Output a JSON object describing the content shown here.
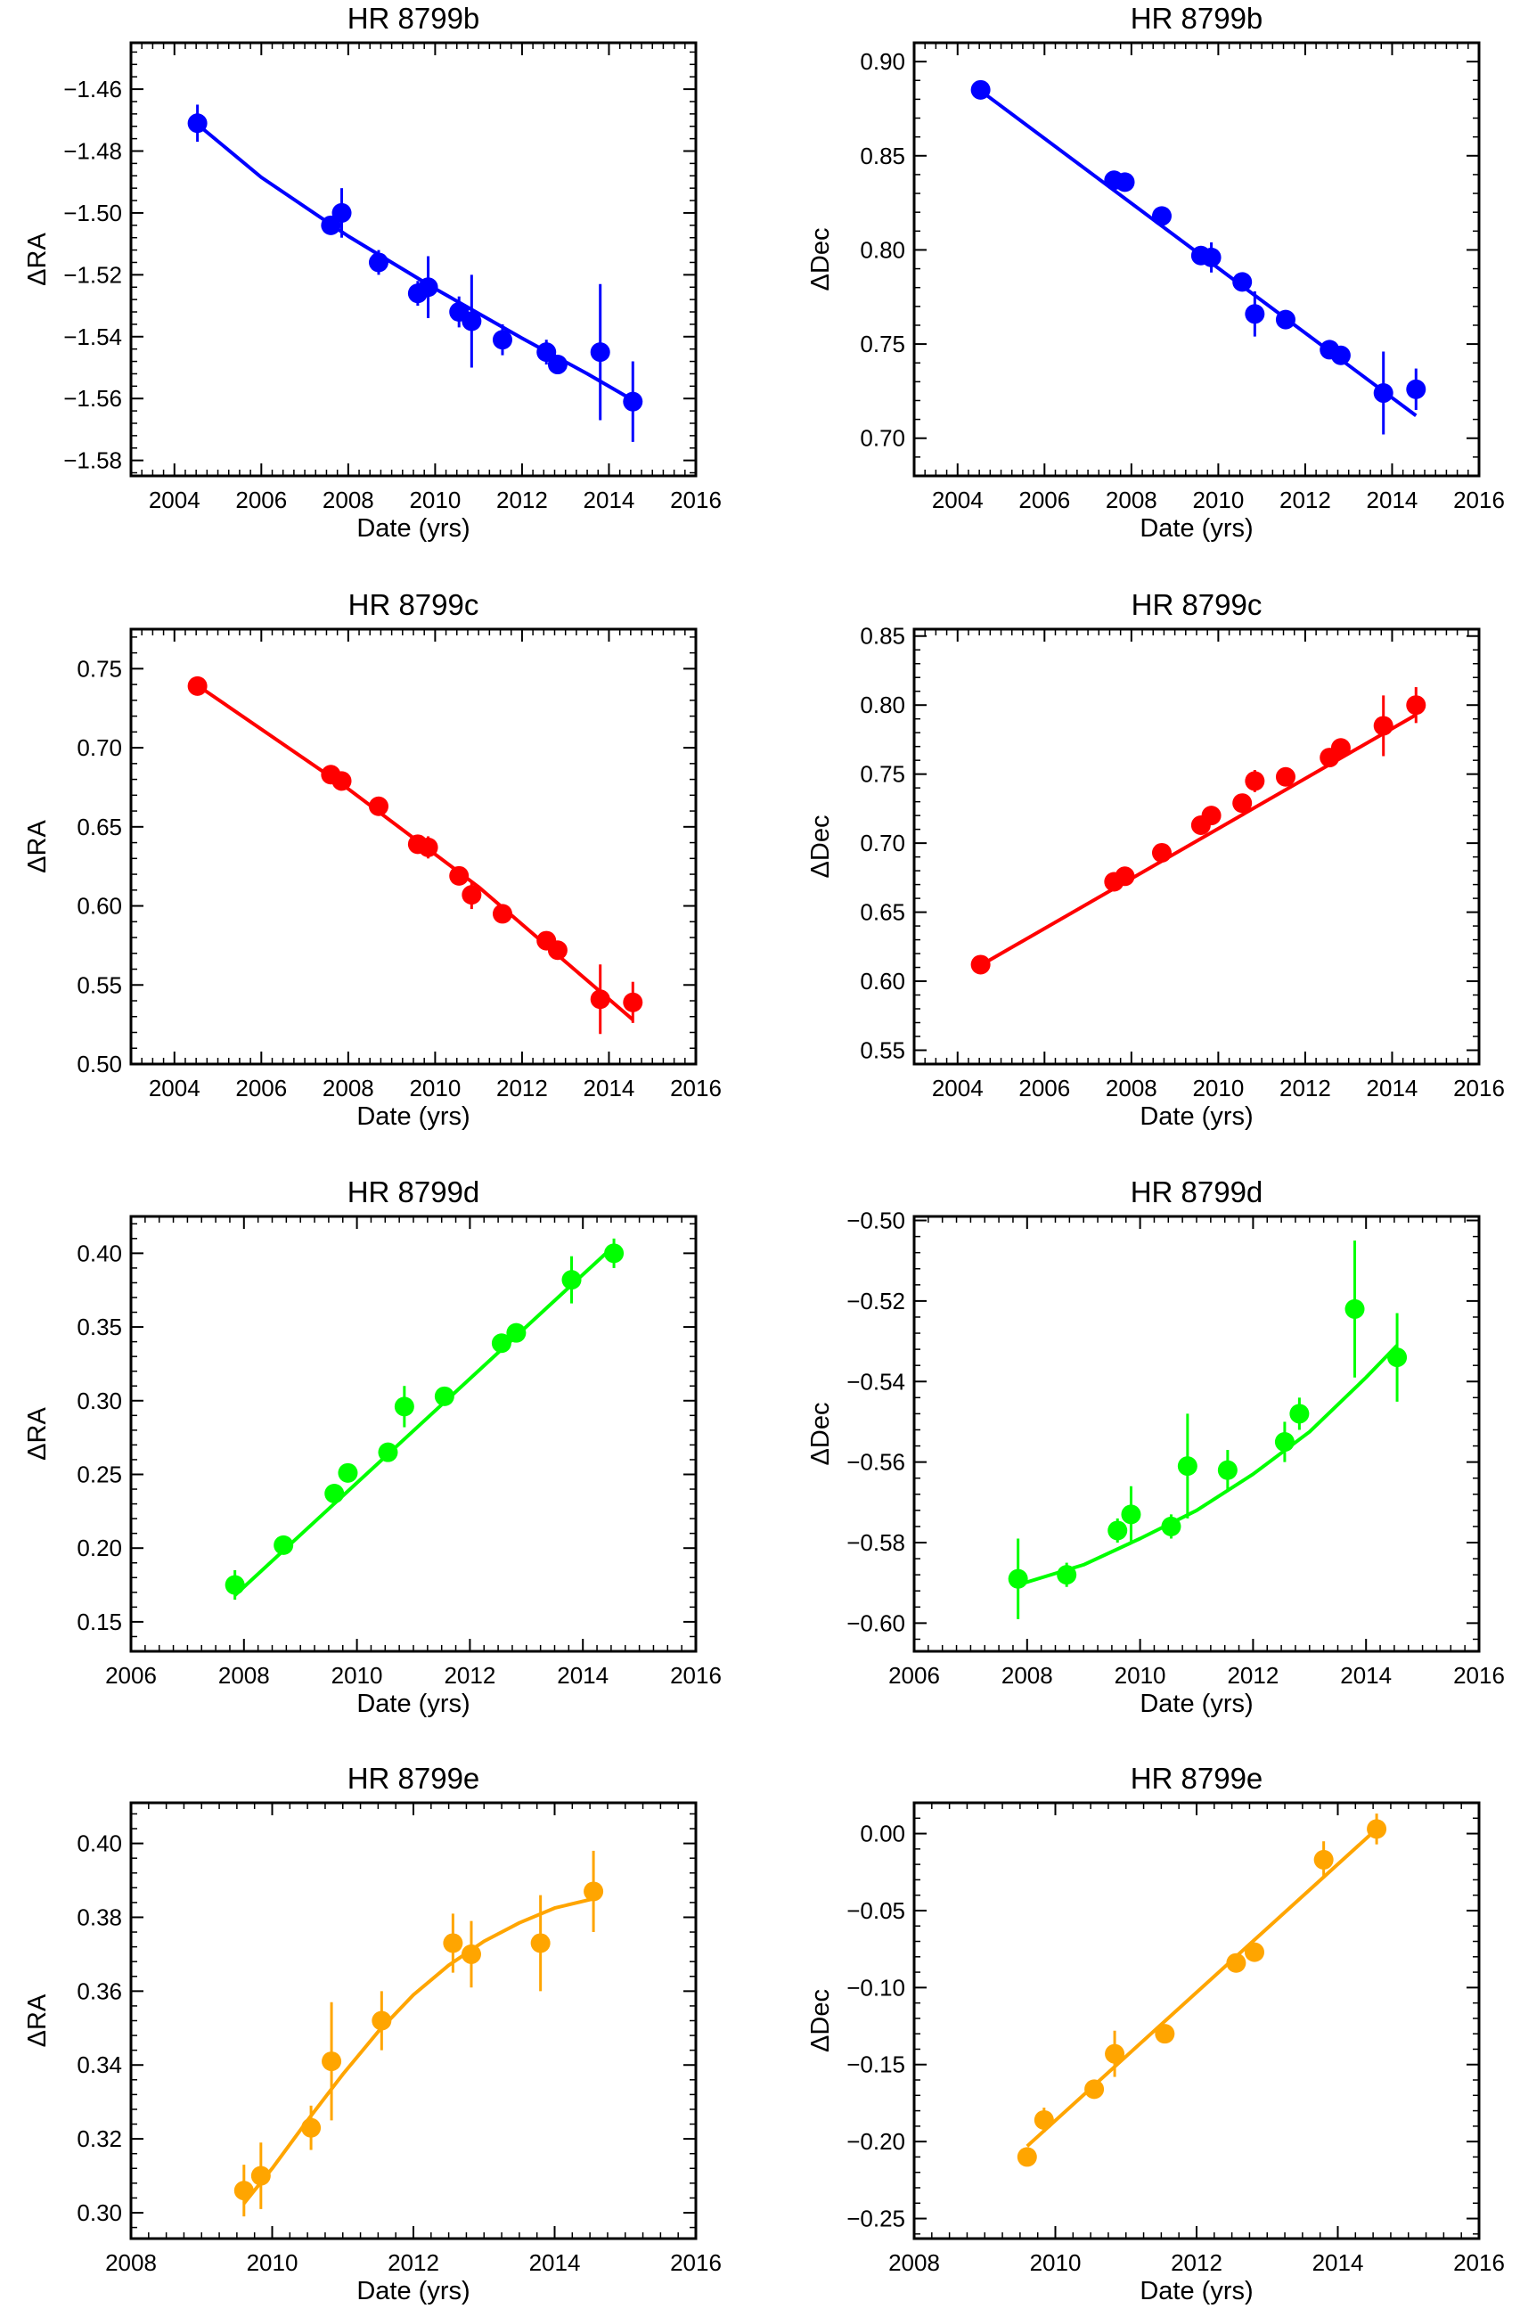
{
  "chart_data": [
    {
      "type": "scatter",
      "panel": "b-ra",
      "title": "HR 8799b",
      "xlabel": "Date (yrs)",
      "ylabel": "ΔRA",
      "xlim": [
        2003,
        2016
      ],
      "ylim": [
        -1.585,
        -1.445
      ],
      "xticks": [
        "2004",
        "2006",
        "2008",
        "2010",
        "2012",
        "2014",
        "2016"
      ],
      "yticks": [
        "-1.46",
        "-1.48",
        "-1.50",
        "-1.52",
        "-1.54",
        "-1.56",
        "-1.58"
      ],
      "color": "#0000ff",
      "points": [
        {
          "x": 2004.53,
          "y": -1.471,
          "err": 0.006
        },
        {
          "x": 2007.6,
          "y": -1.504,
          "err": 0.003
        },
        {
          "x": 2007.85,
          "y": -1.5,
          "err": 0.008
        },
        {
          "x": 2008.7,
          "y": -1.516,
          "err": 0.004
        },
        {
          "x": 2009.6,
          "y": -1.526,
          "err": 0.004
        },
        {
          "x": 2009.84,
          "y": -1.524,
          "err": 0.01
        },
        {
          "x": 2010.55,
          "y": -1.532,
          "err": 0.005
        },
        {
          "x": 2010.84,
          "y": -1.535,
          "err": 0.015
        },
        {
          "x": 2011.55,
          "y": -1.541,
          "err": 0.005
        },
        {
          "x": 2012.56,
          "y": -1.545,
          "err": 0.004
        },
        {
          "x": 2012.82,
          "y": -1.549,
          "err": 0.003
        },
        {
          "x": 2013.8,
          "y": -1.545,
          "err": 0.022
        },
        {
          "x": 2014.55,
          "y": -1.561,
          "err": 0.013
        }
      ],
      "fit": {
        "x": [
          2004.5,
          2006,
          2008,
          2010,
          2012,
          2013.5,
          2014.55
        ],
        "y": [
          -1.471,
          -1.4885,
          -1.5075,
          -1.5245,
          -1.5405,
          -1.552,
          -1.5605
        ]
      }
    },
    {
      "type": "scatter",
      "panel": "b-dec",
      "title": "HR 8799b",
      "xlabel": "Date (yrs)",
      "ylabel": "ΔDec",
      "xlim": [
        2003,
        2016
      ],
      "ylim": [
        0.68,
        0.91
      ],
      "xticks": [
        "2004",
        "2006",
        "2008",
        "2010",
        "2012",
        "2014",
        "2016"
      ],
      "yticks": [
        "0.90",
        "0.85",
        "0.80",
        "0.75",
        "0.70"
      ],
      "color": "#0000ff",
      "points": [
        {
          "x": 2004.53,
          "y": 0.885,
          "err": 0.002
        },
        {
          "x": 2007.6,
          "y": 0.837,
          "err": 0.003
        },
        {
          "x": 2007.85,
          "y": 0.836,
          "err": 0.003
        },
        {
          "x": 2008.7,
          "y": 0.818,
          "err": 0.003
        },
        {
          "x": 2009.6,
          "y": 0.797,
          "err": 0.004
        },
        {
          "x": 2009.84,
          "y": 0.796,
          "err": 0.008
        },
        {
          "x": 2010.55,
          "y": 0.783,
          "err": 0.003
        },
        {
          "x": 2010.84,
          "y": 0.766,
          "err": 0.012
        },
        {
          "x": 2011.55,
          "y": 0.763,
          "err": 0.003
        },
        {
          "x": 2012.56,
          "y": 0.747,
          "err": 0.003
        },
        {
          "x": 2012.82,
          "y": 0.744,
          "err": 0.003
        },
        {
          "x": 2013.8,
          "y": 0.724,
          "err": 0.022
        },
        {
          "x": 2014.55,
          "y": 0.726,
          "err": 0.011
        }
      ],
      "fit": {
        "x": [
          2004.5,
          2014.55
        ],
        "y": [
          0.885,
          0.712
        ]
      }
    },
    {
      "type": "scatter",
      "panel": "c-ra",
      "title": "HR 8799c",
      "xlabel": "Date (yrs)",
      "ylabel": "ΔRA",
      "xlim": [
        2003,
        2016
      ],
      "ylim": [
        0.5,
        0.775
      ],
      "xticks": [
        "2004",
        "2006",
        "2008",
        "2010",
        "2012",
        "2014",
        "2016"
      ],
      "yticks": [
        "0.75",
        "0.70",
        "0.65",
        "0.60",
        "0.55",
        "0.50"
      ],
      "color": "#ff0000",
      "points": [
        {
          "x": 2004.53,
          "y": 0.739,
          "err": 0.002
        },
        {
          "x": 2007.6,
          "y": 0.683,
          "err": 0.003
        },
        {
          "x": 2007.85,
          "y": 0.679,
          "err": 0.003
        },
        {
          "x": 2008.7,
          "y": 0.663,
          "err": 0.003
        },
        {
          "x": 2009.6,
          "y": 0.639,
          "err": 0.003
        },
        {
          "x": 2009.84,
          "y": 0.637,
          "err": 0.007
        },
        {
          "x": 2010.55,
          "y": 0.619,
          "err": 0.003
        },
        {
          "x": 2010.84,
          "y": 0.607,
          "err": 0.009
        },
        {
          "x": 2011.55,
          "y": 0.595,
          "err": 0.003
        },
        {
          "x": 2012.56,
          "y": 0.578,
          "err": 0.003
        },
        {
          "x": 2012.82,
          "y": 0.572,
          "err": 0.003
        },
        {
          "x": 2013.8,
          "y": 0.541,
          "err": 0.022
        },
        {
          "x": 2014.55,
          "y": 0.539,
          "err": 0.013
        }
      ],
      "fit": {
        "x": [
          2004.5,
          2008,
          2011,
          2014.55
        ],
        "y": [
          0.74,
          0.674,
          0.612,
          0.528
        ]
      }
    },
    {
      "type": "scatter",
      "panel": "c-dec",
      "title": "HR 8799c",
      "xlabel": "Date (yrs)",
      "ylabel": "ΔDec",
      "xlim": [
        2003,
        2016
      ],
      "ylim": [
        0.54,
        0.855
      ],
      "xticks": [
        "2004",
        "2006",
        "2008",
        "2010",
        "2012",
        "2014",
        "2016"
      ],
      "yticks": [
        "0.85",
        "0.80",
        "0.75",
        "0.70",
        "0.65",
        "0.60",
        "0.55"
      ],
      "color": "#ff0000",
      "points": [
        {
          "x": 2004.53,
          "y": 0.612,
          "err": 0.002
        },
        {
          "x": 2007.6,
          "y": 0.672,
          "err": 0.003
        },
        {
          "x": 2007.85,
          "y": 0.676,
          "err": 0.003
        },
        {
          "x": 2008.7,
          "y": 0.693,
          "err": 0.003
        },
        {
          "x": 2009.6,
          "y": 0.713,
          "err": 0.004
        },
        {
          "x": 2009.84,
          "y": 0.72,
          "err": 0.005
        },
        {
          "x": 2010.55,
          "y": 0.729,
          "err": 0.003
        },
        {
          "x": 2010.84,
          "y": 0.745,
          "err": 0.008
        },
        {
          "x": 2011.55,
          "y": 0.748,
          "err": 0.003
        },
        {
          "x": 2012.56,
          "y": 0.762,
          "err": 0.003
        },
        {
          "x": 2012.82,
          "y": 0.769,
          "err": 0.003
        },
        {
          "x": 2013.8,
          "y": 0.785,
          "err": 0.022
        },
        {
          "x": 2014.55,
          "y": 0.8,
          "err": 0.013
        }
      ],
      "fit": {
        "x": [
          2004.5,
          2014.55
        ],
        "y": [
          0.611,
          0.793
        ]
      }
    },
    {
      "type": "scatter",
      "panel": "d-ra",
      "title": "HR 8799d",
      "xlabel": "Date (yrs)",
      "ylabel": "ΔRA",
      "xlim": [
        2006,
        2016
      ],
      "ylim": [
        0.13,
        0.425
      ],
      "xticks": [
        "2006",
        "2008",
        "2010",
        "2012",
        "2014",
        "2016"
      ],
      "yticks": [
        "0.40",
        "0.35",
        "0.30",
        "0.25",
        "0.20",
        "0.15"
      ],
      "color": "#00ff00",
      "points": [
        {
          "x": 2007.84,
          "y": 0.175,
          "err": 0.01
        },
        {
          "x": 2008.7,
          "y": 0.202,
          "err": 0.004
        },
        {
          "x": 2009.6,
          "y": 0.237,
          "err": 0.004
        },
        {
          "x": 2009.84,
          "y": 0.251,
          "err": 0.004
        },
        {
          "x": 2010.55,
          "y": 0.265,
          "err": 0.004
        },
        {
          "x": 2010.84,
          "y": 0.296,
          "err": 0.014
        },
        {
          "x": 2011.55,
          "y": 0.303,
          "err": 0.004
        },
        {
          "x": 2012.56,
          "y": 0.339,
          "err": 0.004
        },
        {
          "x": 2012.82,
          "y": 0.346,
          "err": 0.004
        },
        {
          "x": 2013.8,
          "y": 0.382,
          "err": 0.016
        },
        {
          "x": 2014.55,
          "y": 0.4,
          "err": 0.01
        }
      ],
      "fit": {
        "x": [
          2007.84,
          2014.55
        ],
        "y": [
          0.168,
          0.405
        ]
      }
    },
    {
      "type": "scatter",
      "panel": "d-dec",
      "title": "HR 8799d",
      "xlabel": "Date (yrs)",
      "ylabel": "ΔDec",
      "xlim": [
        2006,
        2016
      ],
      "ylim": [
        -0.607,
        -0.499
      ],
      "xticks": [
        "2006",
        "2008",
        "2010",
        "2012",
        "2014",
        "2016"
      ],
      "yticks": [
        "-0.50",
        "-0.52",
        "-0.54",
        "-0.56",
        "-0.58",
        "-0.60"
      ],
      "color": "#00ff00",
      "points": [
        {
          "x": 2007.84,
          "y": -0.589,
          "err": 0.01
        },
        {
          "x": 2008.7,
          "y": -0.588,
          "err": 0.003
        },
        {
          "x": 2009.6,
          "y": -0.577,
          "err": 0.003
        },
        {
          "x": 2009.84,
          "y": -0.573,
          "err": 0.007
        },
        {
          "x": 2010.55,
          "y": -0.576,
          "err": 0.003
        },
        {
          "x": 2010.84,
          "y": -0.561,
          "err": 0.013
        },
        {
          "x": 2011.55,
          "y": -0.562,
          "err": 0.005
        },
        {
          "x": 2012.56,
          "y": -0.555,
          "err": 0.005
        },
        {
          "x": 2012.82,
          "y": -0.548,
          "err": 0.004
        },
        {
          "x": 2013.8,
          "y": -0.522,
          "err": 0.017
        },
        {
          "x": 2014.55,
          "y": -0.534,
          "err": 0.011
        }
      ],
      "fit": {
        "x": [
          2007.84,
          2009,
          2010,
          2011,
          2012,
          2013,
          2014,
          2014.55
        ],
        "y": [
          -0.5905,
          -0.5855,
          -0.579,
          -0.572,
          -0.563,
          -0.5525,
          -0.539,
          -0.531
        ]
      }
    },
    {
      "type": "scatter",
      "panel": "e-ra",
      "title": "HR 8799e",
      "xlabel": "Date (yrs)",
      "ylabel": "ΔRA",
      "xlim": [
        2008,
        2016
      ],
      "ylim": [
        0.293,
        0.411
      ],
      "xticks": [
        "2008",
        "2010",
        "2012",
        "2014",
        "2016"
      ],
      "yticks": [
        "0.40",
        "0.38",
        "0.36",
        "0.34",
        "0.32",
        "0.30"
      ],
      "color": "#ffa500",
      "points": [
        {
          "x": 2009.6,
          "y": 0.306,
          "err": 0.007
        },
        {
          "x": 2009.84,
          "y": 0.31,
          "err": 0.009
        },
        {
          "x": 2010.55,
          "y": 0.323,
          "err": 0.006
        },
        {
          "x": 2010.84,
          "y": 0.341,
          "err": 0.016
        },
        {
          "x": 2011.55,
          "y": 0.352,
          "err": 0.008
        },
        {
          "x": 2012.56,
          "y": 0.373,
          "err": 0.008
        },
        {
          "x": 2012.82,
          "y": 0.37,
          "err": 0.009
        },
        {
          "x": 2013.8,
          "y": 0.373,
          "err": 0.013
        },
        {
          "x": 2014.55,
          "y": 0.387,
          "err": 0.011
        }
      ],
      "fit": {
        "x": [
          2009.6,
          2010,
          2010.5,
          2011,
          2011.5,
          2012,
          2012.5,
          2013,
          2013.5,
          2014,
          2014.55
        ],
        "y": [
          0.3025,
          0.312,
          0.325,
          0.3375,
          0.349,
          0.359,
          0.367,
          0.3735,
          0.3785,
          0.3825,
          0.385
        ]
      }
    },
    {
      "type": "scatter",
      "panel": "e-dec",
      "title": "HR 8799e",
      "xlabel": "Date (yrs)",
      "ylabel": "ΔDec",
      "xlim": [
        2008,
        2016
      ],
      "ylim": [
        -0.263,
        0.02
      ],
      "xticks": [
        "2008",
        "2010",
        "2012",
        "2014",
        "2016"
      ],
      "yticks": [
        "0.00",
        "-0.05",
        "-0.10",
        "-0.15",
        "-0.20",
        "-0.25"
      ],
      "color": "#ffa500",
      "points": [
        {
          "x": 2009.6,
          "y": -0.21,
          "err": 0.004
        },
        {
          "x": 2009.84,
          "y": -0.186,
          "err": 0.008
        },
        {
          "x": 2010.55,
          "y": -0.166,
          "err": 0.004
        },
        {
          "x": 2010.84,
          "y": -0.143,
          "err": 0.015
        },
        {
          "x": 2011.55,
          "y": -0.13,
          "err": 0.004
        },
        {
          "x": 2012.56,
          "y": -0.084,
          "err": 0.004
        },
        {
          "x": 2012.82,
          "y": -0.077,
          "err": 0.006
        },
        {
          "x": 2013.8,
          "y": -0.017,
          "err": 0.012
        },
        {
          "x": 2014.55,
          "y": 0.003,
          "err": 0.01
        }
      ],
      "fit": {
        "x": [
          2009.6,
          2014.55
        ],
        "y": [
          -0.203,
          0.003
        ]
      }
    }
  ]
}
